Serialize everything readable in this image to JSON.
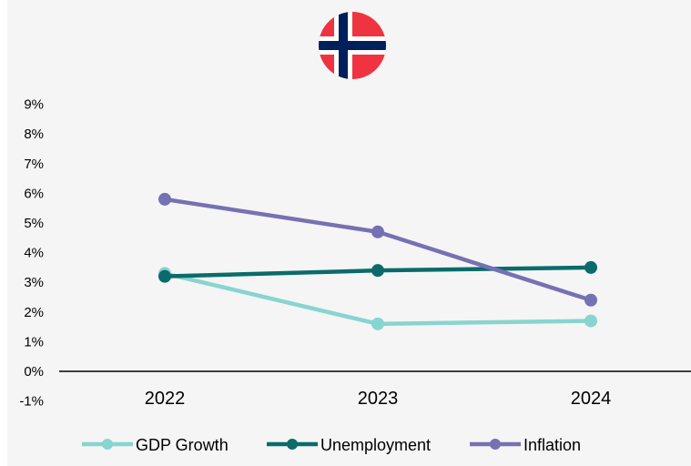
{
  "flag": {
    "icon": "norway-flag-icon",
    "colors": {
      "red": "#ef3340",
      "white": "#ffffff",
      "blue": "#00205b"
    }
  },
  "chart_data": {
    "type": "line",
    "title": "",
    "xlabel": "",
    "ylabel": "",
    "categories": [
      "2022",
      "2023",
      "2024"
    ],
    "y_tick_labels": [
      "-1%",
      "0%",
      "1%",
      "2%",
      "3%",
      "4%",
      "5%",
      "6%",
      "7%",
      "8%",
      "9%"
    ],
    "ylim": [
      -1,
      9
    ],
    "grid": false,
    "legend_position": "bottom",
    "series": [
      {
        "name": "GDP Growth",
        "color": "#88d4d0",
        "values": [
          3.3,
          1.6,
          1.7
        ]
      },
      {
        "name": "Unemployment",
        "color": "#0b6b6b",
        "values": [
          3.2,
          3.4,
          3.5
        ]
      },
      {
        "name": "Inflation",
        "color": "#7571b3",
        "values": [
          5.8,
          4.7,
          2.4
        ]
      }
    ]
  }
}
